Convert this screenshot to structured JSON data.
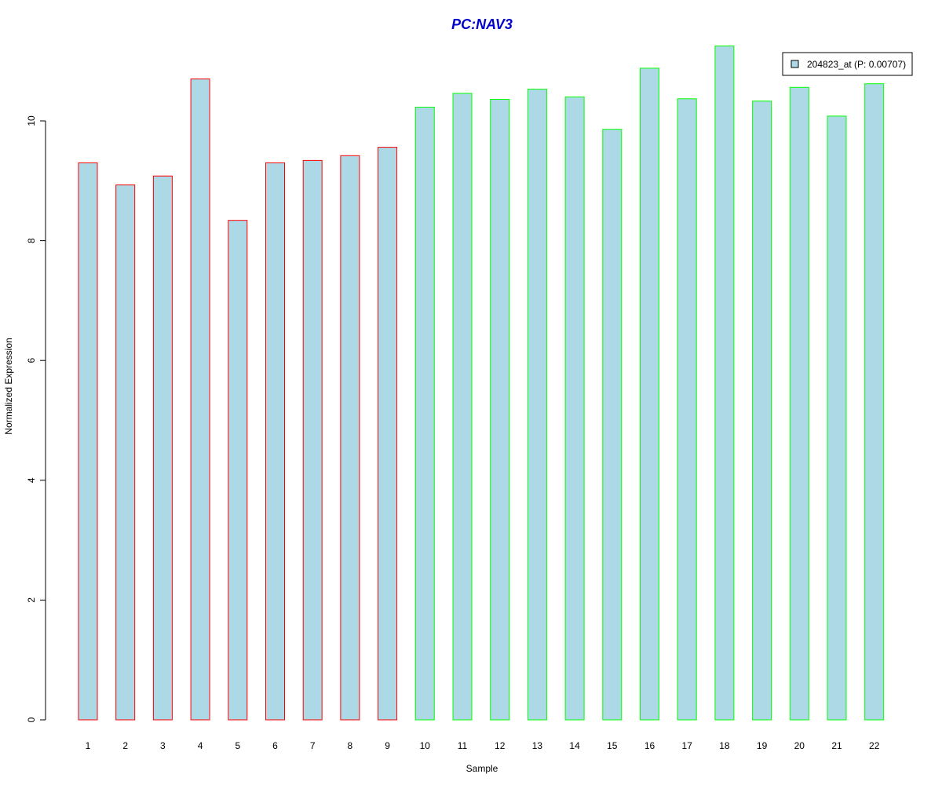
{
  "chart_data": {
    "type": "bar",
    "title": "PC:NAV3",
    "xlabel": "Sample",
    "ylabel": "Normalized Expression",
    "ylim": [
      0,
      11.3
    ],
    "yticks": [
      0,
      2,
      4,
      6,
      8,
      10
    ],
    "categories": [
      "1",
      "2",
      "3",
      "4",
      "5",
      "6",
      "7",
      "8",
      "9",
      "10",
      "11",
      "12",
      "13",
      "14",
      "15",
      "16",
      "17",
      "18",
      "19",
      "20",
      "21",
      "22"
    ],
    "series": [
      {
        "name": "204823_at (P: 0.00707)",
        "values": [
          9.3,
          8.93,
          9.08,
          10.7,
          8.34,
          9.3,
          9.34,
          9.42,
          9.56,
          10.23,
          10.46,
          10.36,
          10.53,
          10.4,
          9.86,
          10.88,
          10.37,
          11.25,
          10.33,
          10.56,
          10.08,
          10.62
        ]
      }
    ],
    "group_border_colors": [
      "#ff0000",
      "#ff0000",
      "#ff0000",
      "#ff0000",
      "#ff0000",
      "#ff0000",
      "#ff0000",
      "#ff0000",
      "#ff0000",
      "#00ff00",
      "#00ff00",
      "#00ff00",
      "#00ff00",
      "#00ff00",
      "#00ff00",
      "#00ff00",
      "#00ff00",
      "#00ff00",
      "#00ff00",
      "#00ff00",
      "#00ff00",
      "#00ff00"
    ],
    "bar_fill": "#add8e6",
    "title_color": "#0000cd",
    "legend_position": "top-right",
    "grid": false
  }
}
